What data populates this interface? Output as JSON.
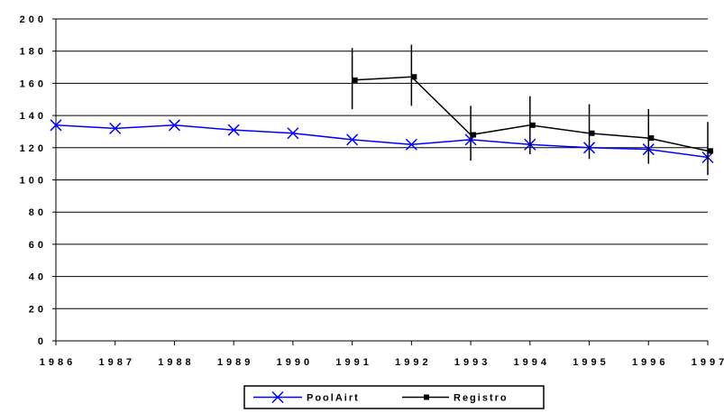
{
  "chart_data": {
    "type": "line",
    "categories": [
      "1986",
      "1987",
      "1988",
      "1989",
      "1990",
      "1991",
      "1992",
      "1993",
      "1994",
      "1995",
      "1996",
      "1997"
    ],
    "ylim": [
      0,
      200
    ],
    "yticks": [
      0,
      20,
      40,
      60,
      80,
      100,
      120,
      140,
      160,
      180,
      200
    ],
    "ytick_labels": [
      "0",
      "20",
      "40",
      "60",
      "80",
      "100",
      "120",
      "140",
      "160",
      "180",
      "200"
    ],
    "xtick_labels": [
      "1986",
      "1987",
      "1988",
      "1989",
      "1990",
      "1991",
      "1992",
      "1993",
      "1994",
      "1995",
      "1996",
      "1997"
    ],
    "grid": true,
    "legend_position": "bottom",
    "series": [
      {
        "name": "PoolAirt",
        "color": "#0000ff",
        "marker": "x",
        "values": [
          134,
          132,
          134,
          131,
          129,
          125,
          122,
          125,
          122,
          120,
          119,
          114
        ]
      },
      {
        "name": "Registro",
        "color": "#000000",
        "marker": "square",
        "values": [
          null,
          null,
          null,
          null,
          null,
          162,
          164,
          128,
          134,
          129,
          126,
          118
        ],
        "error_low": [
          null,
          null,
          null,
          null,
          null,
          144,
          146,
          112,
          116,
          113,
          110,
          103
        ],
        "error_high": [
          null,
          null,
          null,
          null,
          null,
          182,
          184,
          146,
          152,
          147,
          144,
          136
        ]
      }
    ]
  }
}
